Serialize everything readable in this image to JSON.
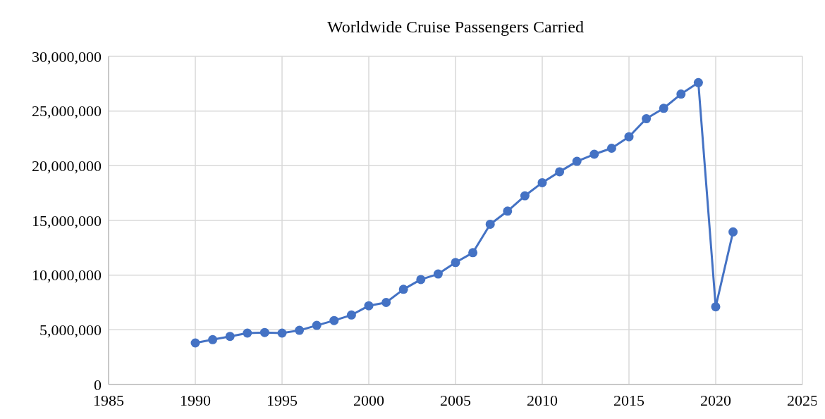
{
  "chart_data": {
    "type": "line",
    "title": "Worldwide Cruise Passengers Carried",
    "x": [
      1990,
      1991,
      1992,
      1993,
      1994,
      1995,
      1996,
      1997,
      1998,
      1999,
      2000,
      2001,
      2002,
      2003,
      2004,
      2005,
      2006,
      2007,
      2008,
      2009,
      2010,
      2011,
      2012,
      2013,
      2014,
      2015,
      2016,
      2017,
      2018,
      2019,
      2020,
      2021
    ],
    "series": [
      {
        "color": "#4472c4",
        "values": [
          3800000,
          4100000,
          4400000,
          4700000,
          4750000,
          4700000,
          4950000,
          5400000,
          5850000,
          6350000,
          7200000,
          7500000,
          8700000,
          9600000,
          10100000,
          11150000,
          12050000,
          14650000,
          15850000,
          17250000,
          18450000,
          19450000,
          20400000,
          21050000,
          21600000,
          22650000,
          24300000,
          25250000,
          26550000,
          27600000,
          7100000,
          13950000
        ]
      }
    ],
    "xlim": [
      1985,
      2025
    ],
    "xticks": [
      1985,
      1990,
      1995,
      2000,
      2005,
      2010,
      2015,
      2020,
      2025
    ],
    "ylim": [
      0,
      30000000
    ],
    "yticks": [
      {
        "value": 0,
        "label": "0"
      },
      {
        "value": 5000000,
        "label": "5,000,000"
      },
      {
        "value": 10000000,
        "label": "10,000,000"
      },
      {
        "value": 15000000,
        "label": "15,000,000"
      },
      {
        "value": 20000000,
        "label": "20,000,000"
      },
      {
        "value": 25000000,
        "label": "25,000,000"
      },
      {
        "value": 30000000,
        "label": "30,000,000"
      }
    ],
    "grid": true,
    "marker": "circle",
    "line_style": "solid"
  }
}
